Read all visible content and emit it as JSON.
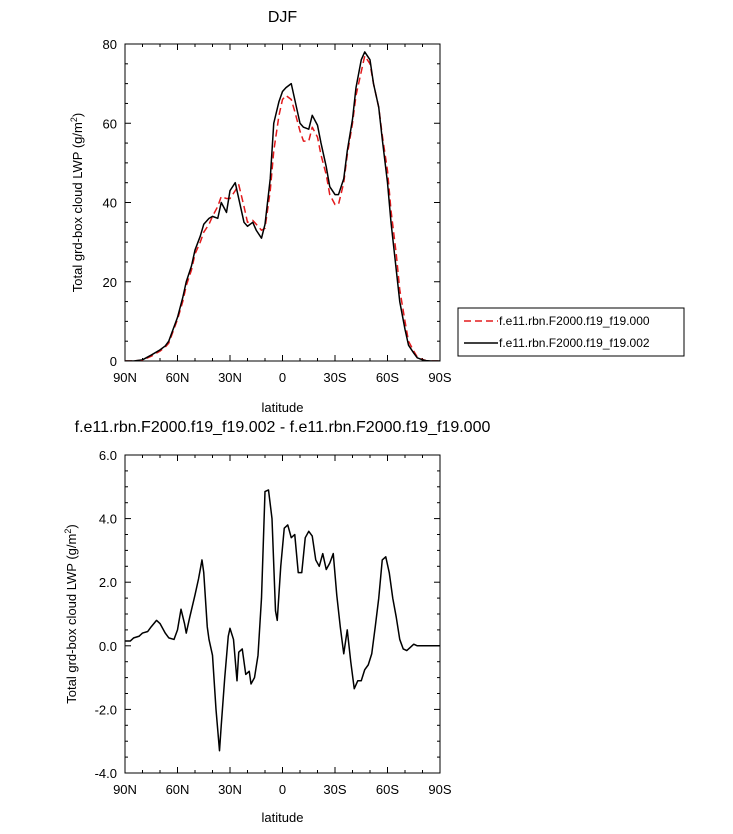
{
  "chart_data": [
    {
      "type": "line",
      "title": "DJF",
      "xlabel": "latitude",
      "ylabel": "Total grd-box cloud LWP (g/m",
      "ylabel_sup": "2",
      "ylabel_end": ")",
      "xlim": [
        -90,
        90
      ],
      "ylim": [
        0,
        80
      ],
      "x_ticks": [
        {
          "value": -90,
          "label": "90N"
        },
        {
          "value": -60,
          "label": "60N"
        },
        {
          "value": -30,
          "label": "30N"
        },
        {
          "value": 0,
          "label": "0"
        },
        {
          "value": 30,
          "label": "30S"
        },
        {
          "value": 60,
          "label": "60S"
        },
        {
          "value": 90,
          "label": "90S"
        }
      ],
      "y_ticks": [
        {
          "value": 0,
          "label": "0"
        },
        {
          "value": 20,
          "label": "20"
        },
        {
          "value": 40,
          "label": "40"
        },
        {
          "value": 60,
          "label": "60"
        },
        {
          "value": 80,
          "label": "80"
        }
      ],
      "legend_position": "right",
      "series": [
        {
          "name": "f.e11.rbn.F2000.f19_f19.000",
          "color": "#e31a1c",
          "dash": "dashed",
          "x": [
            -90,
            -85,
            -80,
            -75,
            -70,
            -67,
            -65,
            -60,
            -57,
            -55,
            -52,
            -50,
            -47,
            -45,
            -42,
            -40,
            -37,
            -35,
            -32,
            -30,
            -27,
            -25,
            -22,
            -20,
            -17,
            -15,
            -12,
            -10,
            -7,
            -5,
            -2,
            0,
            2,
            5,
            7,
            10,
            12,
            15,
            17,
            20,
            22,
            25,
            27,
            30,
            32,
            35,
            37,
            40,
            42,
            45,
            47,
            50,
            52,
            55,
            57,
            60,
            62,
            65,
            67,
            70,
            72,
            75,
            77,
            80,
            82,
            85,
            87,
            90
          ],
          "y": [
            0,
            0,
            0.2,
            1.2,
            2.5,
            3.5,
            4.5,
            10.5,
            15,
            19,
            23,
            27,
            30,
            32.5,
            34.5,
            36.5,
            39,
            41.5,
            41,
            41,
            43,
            44.5,
            39,
            35,
            35.5,
            34.5,
            33,
            33.5,
            43,
            53,
            62,
            66,
            67,
            66,
            63,
            58,
            55.5,
            55.5,
            59,
            56.5,
            52,
            47,
            42,
            39.5,
            39.5,
            45,
            52,
            60,
            67,
            73,
            77,
            75,
            70,
            64,
            57,
            48,
            38,
            27,
            18,
            10,
            5,
            2.5,
            1,
            0.4,
            0.1,
            0,
            0,
            0
          ]
        },
        {
          "name": "f.e11.rbn.F2000.f19_f19.002",
          "color": "#000000",
          "dash": "solid",
          "x": [
            -90,
            -85,
            -80,
            -75,
            -70,
            -67,
            -65,
            -60,
            -57,
            -55,
            -52,
            -50,
            -47,
            -45,
            -42,
            -40,
            -37,
            -35,
            -32,
            -30,
            -27,
            -25,
            -22,
            -20,
            -17,
            -15,
            -12,
            -10,
            -7,
            -5,
            -2,
            0,
            2,
            5,
            7,
            10,
            12,
            15,
            17,
            20,
            22,
            25,
            27,
            30,
            32,
            35,
            37,
            40,
            42,
            45,
            47,
            50,
            52,
            55,
            57,
            60,
            62,
            65,
            67,
            70,
            72,
            75,
            77,
            80,
            82,
            85,
            87,
            90
          ],
          "y": [
            0,
            0,
            0.3,
            1.5,
            2.8,
            3.8,
            5,
            11,
            16,
            20,
            24,
            28,
            31.5,
            34.5,
            36,
            36.5,
            36,
            40,
            37.5,
            43,
            45,
            41,
            35,
            34,
            35,
            33,
            31,
            34.5,
            46,
            60,
            65.5,
            68,
            69,
            70,
            66,
            60,
            59,
            58.5,
            62,
            59.5,
            55,
            49,
            44,
            42,
            42,
            46,
            53,
            61,
            69,
            76,
            78,
            76,
            70,
            64,
            56,
            45,
            35,
            23,
            15,
            8,
            4,
            2,
            0.8,
            0.3,
            0.1,
            0,
            0,
            0
          ]
        }
      ]
    },
    {
      "type": "line",
      "title": "f.e11.rbn.F2000.f19_f19.002 - f.e11.rbn.F2000.f19_f19.000",
      "xlabel": "latitude",
      "ylabel": "Total grd-box cloud LWP (g/m",
      "ylabel_sup": "2",
      "ylabel_end": ")",
      "xlim": [
        -90,
        90
      ],
      "ylim": [
        -4,
        6
      ],
      "x_ticks": [
        {
          "value": -90,
          "label": "90N"
        },
        {
          "value": -60,
          "label": "60N"
        },
        {
          "value": -30,
          "label": "30N"
        },
        {
          "value": 0,
          "label": "0"
        },
        {
          "value": 30,
          "label": "30S"
        },
        {
          "value": 60,
          "label": "60S"
        },
        {
          "value": 90,
          "label": "90S"
        }
      ],
      "y_ticks": [
        {
          "value": -4,
          "label": "-4.0"
        },
        {
          "value": -2,
          "label": "-2.0"
        },
        {
          "value": 0,
          "label": "0.0"
        },
        {
          "value": 2,
          "label": "2.0"
        },
        {
          "value": 4,
          "label": "4.0"
        },
        {
          "value": 6,
          "label": "6.0"
        }
      ],
      "series": [
        {
          "color": "#000000",
          "dash": "solid",
          "x": [
            -90,
            -87,
            -85,
            -82,
            -80,
            -77,
            -75,
            -72,
            -70,
            -67,
            -65,
            -62,
            -60,
            -58,
            -56,
            -55,
            -53,
            -50,
            -48,
            -46,
            -45,
            -43,
            -42,
            -40,
            -38,
            -36,
            -35,
            -33,
            -31,
            -30,
            -28,
            -26,
            -25,
            -23,
            -21,
            -19,
            -18,
            -16,
            -14,
            -12,
            -10,
            -8,
            -6,
            -4,
            -3,
            -1,
            1,
            3,
            5,
            7,
            9,
            11,
            13,
            15,
            17,
            19,
            21,
            23,
            25,
            27,
            29,
            31,
            33,
            35,
            37,
            39,
            41,
            43,
            45,
            47,
            49,
            51,
            53,
            55,
            57,
            59,
            61,
            63,
            65,
            67,
            69,
            71,
            73,
            75,
            77,
            79,
            81,
            83,
            85,
            87,
            90
          ],
          "y": [
            0.15,
            0.15,
            0.25,
            0.3,
            0.4,
            0.45,
            0.6,
            0.8,
            0.7,
            0.4,
            0.25,
            0.2,
            0.5,
            1.15,
            0.7,
            0.4,
            0.9,
            1.6,
            2.1,
            2.7,
            2.3,
            0.6,
            0.2,
            -0.3,
            -2,
            -3.3,
            -2.5,
            -1,
            0.3,
            0.55,
            0.2,
            -1.1,
            -0.2,
            -0.1,
            -0.9,
            -0.8,
            -1.2,
            -1.0,
            -0.3,
            1.5,
            4.85,
            4.9,
            4.0,
            1.1,
            0.8,
            2.5,
            3.7,
            3.8,
            3.4,
            3.5,
            2.3,
            2.3,
            3.4,
            3.6,
            3.45,
            2.7,
            2.5,
            2.9,
            2.4,
            2.6,
            2.9,
            1.6,
            0.6,
            -0.25,
            0.5,
            -0.5,
            -1.35,
            -1.1,
            -1.1,
            -0.75,
            -0.6,
            -0.25,
            0.6,
            1.5,
            2.7,
            2.8,
            2.3,
            1.5,
            0.9,
            0.2,
            -0.1,
            -0.15,
            -0.05,
            0.05,
            0,
            0,
            0,
            0,
            0,
            0,
            0
          ]
        }
      ]
    }
  ]
}
